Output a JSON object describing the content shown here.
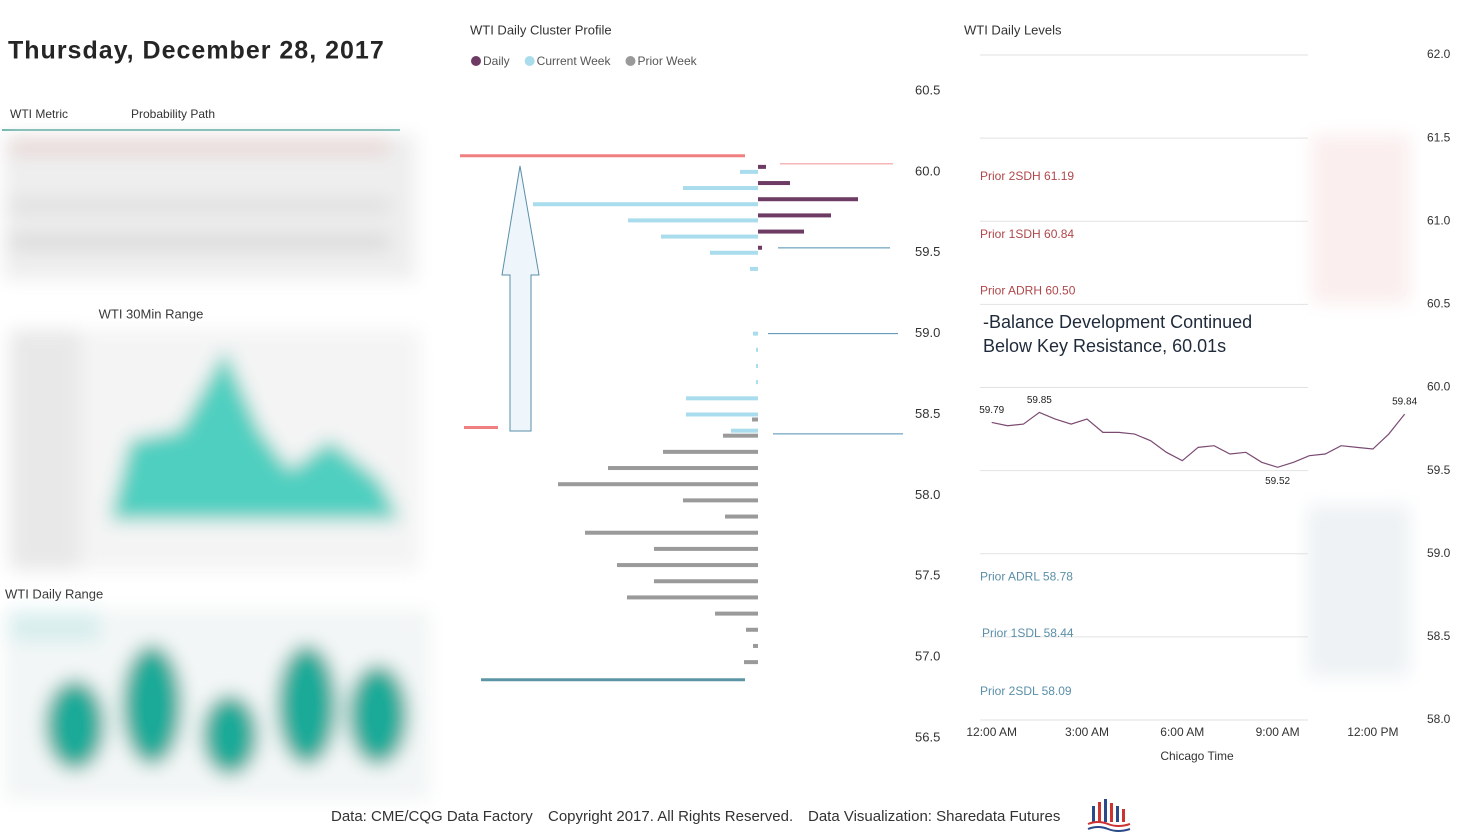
{
  "header": {
    "date": "Thursday, December 28, 2017"
  },
  "metric_table": {
    "columns": [
      "WTI Metric",
      "Probability Path"
    ]
  },
  "range_30min": {
    "title": "WTI 30Min Range"
  },
  "daily_range": {
    "title": "WTI Daily Range"
  },
  "footer": [
    "Data: CME/CQG Data Factory",
    "Copyright 2017. All Rights Reserved.",
    "Data Visualization: Sharedata Futures"
  ],
  "chart_data": [
    {
      "type": "bar",
      "orientation": "horizontal",
      "title": "WTI Daily Cluster Profile",
      "ylim": [
        56.5,
        60.5
      ],
      "yticks": [
        60.5,
        {
          "value": 60,
          "label": "60.0"
        },
        59.5,
        {
          "value": 59,
          "label": "59.0"
        },
        58.5,
        {
          "value": 58,
          "label": "58.0"
        },
        57.5,
        {
          "value": 57,
          "label": "57.0"
        },
        56.5
      ],
      "series": [
        {
          "name": "Daily",
          "color": "#6e3b64",
          "direction": "right",
          "y": [
            60.0,
            59.9,
            59.8,
            59.7,
            59.6,
            59.5
          ],
          "values": [
            8,
            32,
            100,
            73,
            46,
            4
          ]
        },
        {
          "name": "Current Week",
          "color": "#a9dcec",
          "direction": "left",
          "y": [
            60.0,
            59.9,
            59.8,
            59.7,
            59.6,
            59.5,
            59.4,
            59.0,
            58.9,
            58.8,
            58.7,
            58.6,
            58.5,
            58.4
          ],
          "values": [
            18,
            75,
            225,
            130,
            97,
            48,
            8,
            5,
            2,
            2,
            2,
            72,
            72,
            27
          ]
        },
        {
          "name": "Prior Week",
          "color": "#9a9a9a",
          "direction": "left",
          "y": [
            58.5,
            58.4,
            58.3,
            58.2,
            58.1,
            58.0,
            57.9,
            57.8,
            57.7,
            57.6,
            57.5,
            57.4,
            57.3,
            57.2,
            57.1,
            57.0
          ],
          "values": [
            6,
            35,
            95,
            150,
            200,
            75,
            33,
            173,
            104,
            141,
            104,
            131,
            43,
            12,
            5,
            14
          ]
        }
      ],
      "reference_lines": [
        {
          "value": 60.1,
          "color": "#f08080"
        },
        {
          "value": 60.05,
          "color": "#f4b6b6"
        },
        {
          "value": 59.53,
          "color": "#4f8fb0"
        },
        {
          "value": 59.0,
          "color": "#4f8fb0"
        },
        {
          "value": 58.38,
          "color": "#4f8fb0"
        },
        {
          "value": 58.42,
          "color": "#f08080"
        },
        {
          "value": 56.86,
          "color": "#5c96a6"
        }
      ]
    },
    {
      "type": "line",
      "title": "WTI Daily Levels",
      "x_label": "Chicago Time",
      "xlim": [
        -0.4,
        13.2
      ],
      "xticks": [
        {
          "value": 0,
          "label": "12:00 AM"
        },
        {
          "value": 3,
          "label": "3:00 AM"
        },
        {
          "value": 6,
          "label": "6:00 AM"
        },
        {
          "value": 9,
          "label": "9:00 AM"
        },
        {
          "value": 12,
          "label": "12:00 PM"
        }
      ],
      "ylim": [
        58.0,
        62.0
      ],
      "yticks": [
        {
          "value": 62,
          "label": "62.0"
        },
        61.5,
        {
          "value": 61,
          "label": "61.0"
        },
        60.5,
        {
          "value": 60,
          "label": "60.0"
        },
        59.5,
        {
          "value": 59,
          "label": "59.0"
        },
        58.5,
        {
          "value": 58,
          "label": "58.0"
        }
      ],
      "grid": true,
      "x": [
        0,
        0.5,
        1,
        1.5,
        2,
        2.5,
        3,
        3.5,
        4,
        4.5,
        5,
        5.5,
        6,
        6.5,
        7,
        7.5,
        8,
        8.5,
        9,
        9.5,
        10,
        10.5,
        11,
        11.5,
        12,
        12.5,
        13
      ],
      "series": [
        {
          "name": "WTI",
          "color": "#7a4a72",
          "values": [
            59.79,
            59.77,
            59.78,
            59.85,
            59.81,
            59.78,
            59.81,
            59.73,
            59.73,
            59.72,
            59.68,
            59.61,
            59.56,
            59.64,
            59.65,
            59.6,
            59.61,
            59.55,
            59.52,
            59.55,
            59.59,
            59.6,
            59.65,
            59.64,
            59.63,
            59.72,
            59.84
          ]
        }
      ],
      "labeled_points": [
        0,
        3,
        18,
        26
      ],
      "levels": [
        {
          "label": "Prior 2SDH 61.19",
          "value": 61.19,
          "color": "#b0474a"
        },
        {
          "label": "Prior 1SDH 60.84",
          "value": 60.84,
          "color": "#b0474a"
        },
        {
          "label": "Prior ADRH 60.50",
          "value": 60.5,
          "color": "#b0474a"
        },
        {
          "label": "Prior ADRL 58.78",
          "value": 58.78,
          "color": "#5b8fa8"
        },
        {
          "label": "Prior 1SDL 58.44",
          "value": 58.44,
          "color": "#5b8fa8"
        },
        {
          "label": "Prior 2SDL 58.09",
          "value": 58.09,
          "color": "#5b8fa8"
        }
      ],
      "annotation": [
        "-Balance Development Continued",
        "Below Key Resistance, 60.01s"
      ]
    }
  ]
}
